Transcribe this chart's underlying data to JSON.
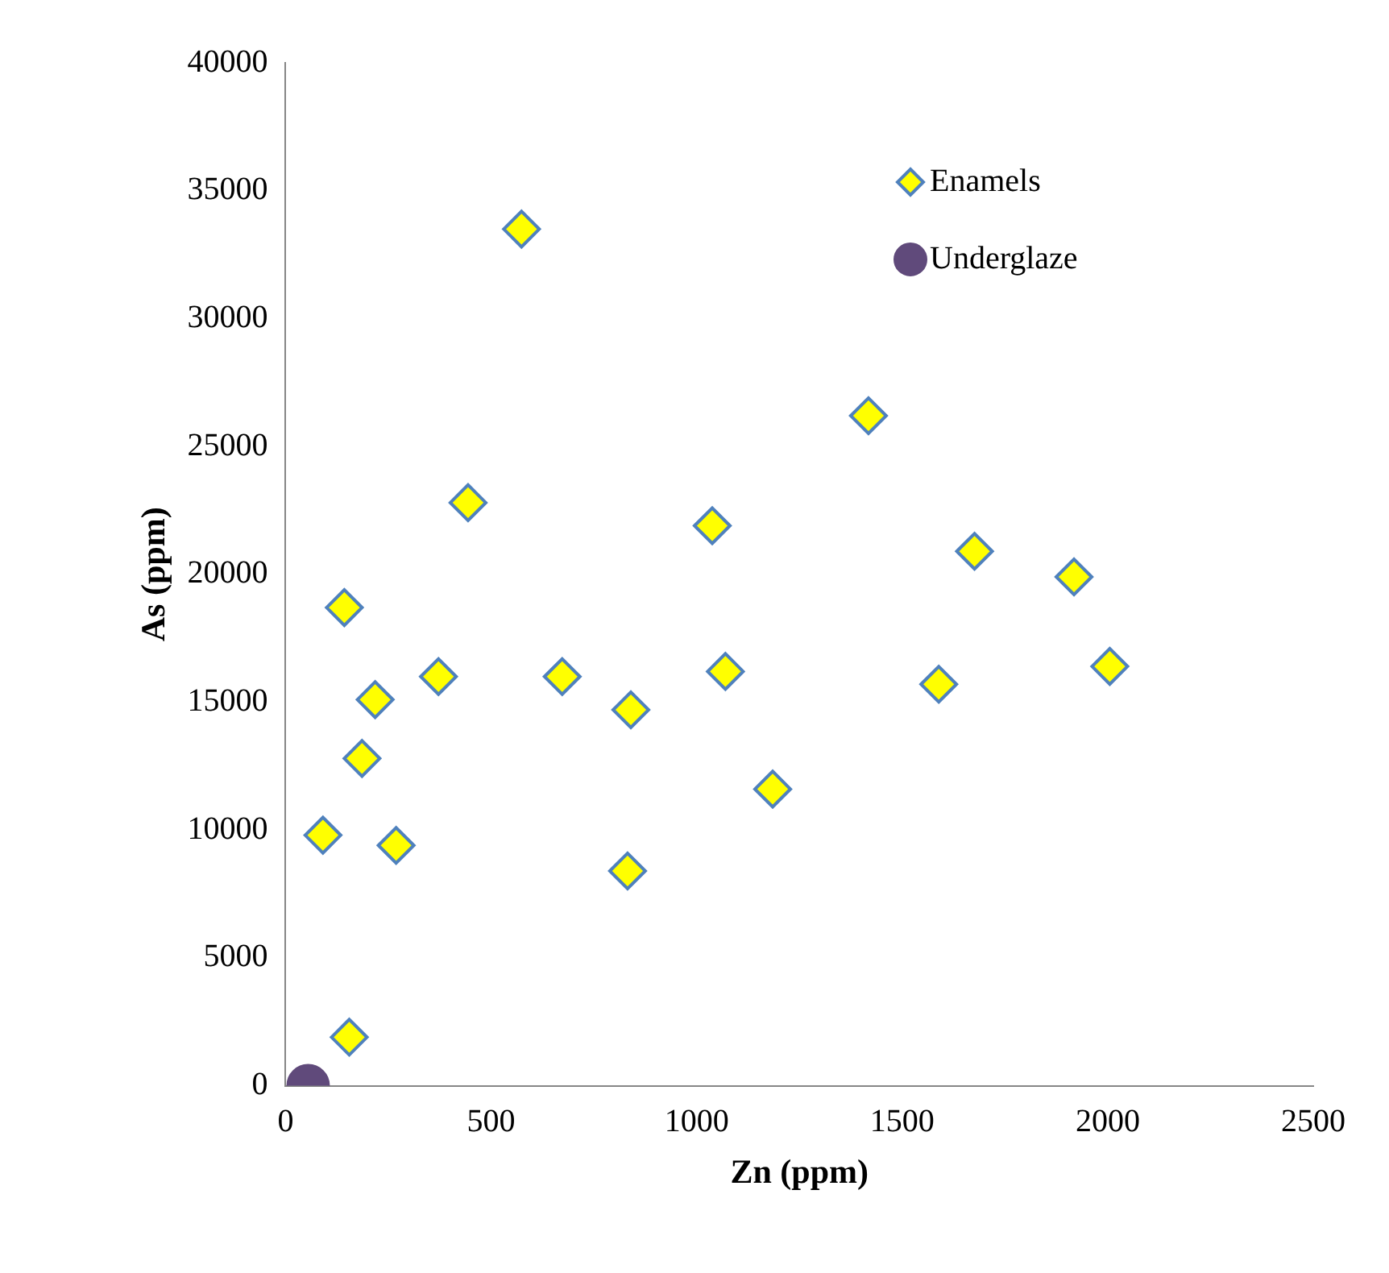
{
  "chart_data": {
    "type": "scatter",
    "xlabel": "Zn (ppm)",
    "ylabel": "As (ppm)",
    "xlim": [
      0,
      2500
    ],
    "xticks": [
      0,
      500,
      1000,
      1500,
      2000,
      2500
    ],
    "ylim": [
      0,
      40000
    ],
    "yticks": [
      0,
      5000,
      10000,
      15000,
      20000,
      25000,
      30000,
      35000,
      40000
    ],
    "grid": false,
    "legend": "top right",
    "series": [
      {
        "name": "Enamels",
        "color": "#ffff00",
        "marker": "diamond",
        "x": [
          91,
          155,
          143,
          186,
          218,
          269,
          372,
          444,
          574,
          673,
          840,
          832,
          1038,
          1070,
          1185,
          1418,
          1589,
          1676,
          1918,
          2005
        ],
        "values": [
          9800,
          1900,
          18700,
          12800,
          15100,
          9400,
          16000,
          22800,
          33500,
          16000,
          14700,
          8400,
          21900,
          16200,
          11600,
          26200,
          15700,
          20900,
          19900,
          16400
        ]
      },
      {
        "name": "Underglaze",
        "color": "#604a7b",
        "marker": "circle",
        "x": [
          55
        ],
        "values": [
          0
        ]
      }
    ]
  }
}
